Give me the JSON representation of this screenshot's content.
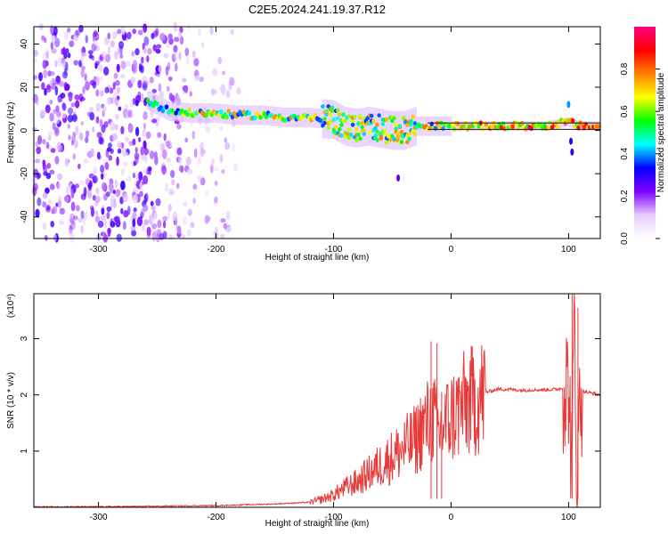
{
  "title": "C2E5.2024.241.19.37.R12",
  "chart_data": [
    {
      "type": "heatmap",
      "title": "C2E5.2024.241.19.37.R12",
      "xlabel": "Height of straight line (km)",
      "ylabel": "Frequency (Hz)",
      "xlim": [
        -355,
        127
      ],
      "ylim": [
        -50,
        48
      ],
      "x_ticks": [
        "-300",
        "-200",
        "-100",
        "0",
        "100"
      ],
      "x_tick_values": [
        -300,
        -200,
        -100,
        0,
        100
      ],
      "y_ticks": [
        "40",
        "20",
        "0",
        "-20",
        "-40"
      ],
      "y_tick_values": [
        40,
        20,
        0,
        -20,
        -40
      ],
      "colorbar": {
        "label": "Normalized spectral amplitude",
        "range": [
          0,
          1
        ],
        "ticks": [
          "0.0",
          "0.2",
          "0.4",
          "0.6",
          "0.8"
        ],
        "tick_values": [
          0.0,
          0.2,
          0.4,
          0.6,
          0.8
        ],
        "colormap": [
          "#ffffff",
          "#e6ccff",
          "#8000ff",
          "#0000ff",
          "#00ffff",
          "#00ff00",
          "#ffff00",
          "#ff8000",
          "#ff0000",
          "#ff0080"
        ]
      },
      "ridge": {
        "x": [
          -258,
          -240,
          -220,
          -200,
          -180,
          -160,
          -140,
          -120,
          -100,
          -90,
          -80,
          -70,
          -60,
          -50,
          -40,
          -30,
          -20,
          -10,
          0,
          20,
          40,
          60,
          80,
          90,
          100,
          110,
          127
        ],
        "y": [
          14,
          9,
          8,
          8,
          7,
          7,
          6,
          6,
          5,
          2,
          1,
          2,
          1,
          0,
          0,
          2,
          2,
          2,
          2,
          2,
          2,
          2,
          2,
          3,
          4,
          2,
          2
        ]
      },
      "noise_region_x": [
        -355,
        -175
      ]
    },
    {
      "type": "line",
      "xlabel": "Height of straight line (km)",
      "ylabel": "SNR (10 * v/v)",
      "y_multiplier": "(x10⁴)",
      "xlim": [
        -355,
        127
      ],
      "ylim": [
        0,
        3.8
      ],
      "x_ticks": [
        "-300",
        "-200",
        "-100",
        "0",
        "100"
      ],
      "x_tick_values": [
        -300,
        -200,
        -100,
        0,
        100
      ],
      "y_ticks": [
        "3",
        "2",
        "1"
      ],
      "y_tick_values": [
        3,
        2,
        1
      ],
      "color": "#e83a3a",
      "series": [
        {
          "x": [
            -355,
            -300,
            -250,
            -200,
            -150,
            -120,
            -110,
            -100,
            -90,
            -80,
            -70,
            -60,
            -50,
            -40,
            -30,
            -25,
            -20,
            -15,
            -10,
            -5,
            0,
            5,
            10,
            20,
            30,
            40,
            50,
            60,
            70,
            80,
            90,
            95,
            100,
            103,
            105,
            107,
            110,
            115,
            127
          ],
          "y": [
            0.01,
            0.01,
            0.02,
            0.03,
            0.06,
            0.09,
            0.14,
            0.22,
            0.35,
            0.45,
            0.6,
            0.75,
            0.9,
            1.05,
            1.2,
            1.4,
            1.5,
            1.6,
            1.3,
            1.5,
            1.6,
            1.7,
            1.8,
            1.9,
            2.05,
            2.1,
            2.1,
            2.08,
            2.09,
            2.09,
            2.1,
            2.12,
            2.2,
            0.6,
            3.8,
            0.4,
            2.08,
            2.05,
            2.0
          ]
        }
      ],
      "spikes": [
        {
          "x": -17,
          "y": 2.95
        },
        {
          "x": -12,
          "y": 2.92
        },
        {
          "x": -8,
          "y": 2.05
        },
        {
          "x": 103,
          "y": 3.8
        },
        {
          "x": 108,
          "y": 3.55
        }
      ]
    }
  ]
}
